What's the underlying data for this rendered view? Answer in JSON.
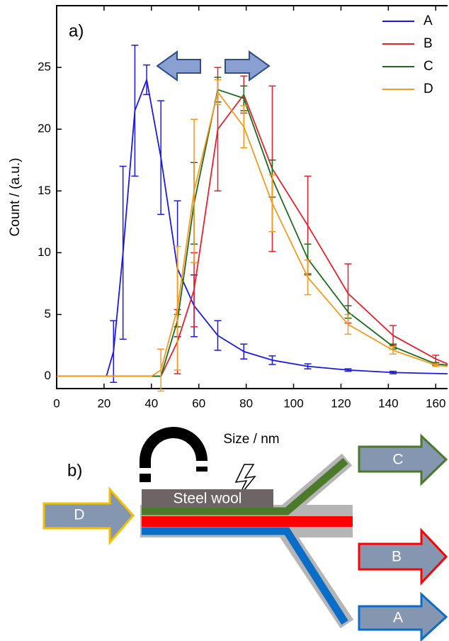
{
  "chart_data": {
    "type": "line",
    "panel_label": "a)",
    "x_label": "Size / nm",
    "y_label": "Count / (a.u.)",
    "xlim": [
      0,
      165
    ],
    "ylim": [
      -1,
      30
    ],
    "xticks": [
      0,
      20,
      40,
      60,
      80,
      100,
      120,
      140,
      160
    ],
    "yticks": [
      0,
      5,
      10,
      15,
      20,
      25
    ],
    "grid": false,
    "legend": "upper right",
    "series": [
      {
        "name": "A",
        "color": "#1a1ae0",
        "x": [
          0,
          21,
          24,
          28,
          33,
          38,
          44,
          51,
          58,
          68,
          79,
          91,
          106,
          123,
          142,
          165
        ],
        "values": [
          0,
          0,
          2,
          10,
          21.5,
          24,
          17.7,
          8.7,
          5.7,
          3.3,
          2,
          1.3,
          0.8,
          0.5,
          0.3,
          0.2
        ],
        "errors": [
          null,
          null,
          2.5,
          7,
          5.3,
          1.2,
          4.6,
          5.5,
          2.5,
          1.2,
          0.6,
          0.35,
          0.2,
          0.1,
          0.1,
          null
        ]
      },
      {
        "name": "B",
        "color": "#e8202a",
        "x": [
          0,
          44,
          51,
          58,
          68,
          79,
          91,
          106,
          123,
          142,
          160,
          165
        ],
        "values": [
          0,
          0,
          2.8,
          7,
          20,
          22.8,
          16.8,
          12.2,
          6.7,
          3.3,
          1.4,
          1
        ],
        "errors": [
          null,
          null,
          2.6,
          3,
          5,
          1.5,
          6.7,
          4,
          2.4,
          0.8,
          0.3,
          null
        ]
      },
      {
        "name": "C",
        "color": "#1e6b1e",
        "x": [
          0,
          44,
          51,
          58,
          68,
          79,
          91,
          106,
          123,
          142,
          160,
          165
        ],
        "values": [
          0,
          0,
          4.5,
          14,
          23.2,
          22.5,
          16,
          9.5,
          5.2,
          2.4,
          1,
          0.9
        ],
        "errors": [
          null,
          null,
          0.5,
          3.3,
          1,
          1,
          1.5,
          1.2,
          0.5,
          0.2,
          0.1,
          null
        ]
      },
      {
        "name": "D",
        "color": "#f59a1e",
        "x": [
          0,
          40,
          44,
          51,
          58,
          68,
          79,
          91,
          106,
          123,
          142,
          160,
          165
        ],
        "values": [
          0,
          0,
          0.5,
          5.5,
          15,
          23,
          20.2,
          14,
          8,
          4.2,
          2.1,
          0.9,
          0.8
        ],
        "errors": [
          null,
          null,
          1.7,
          5,
          5.8,
          1,
          1.7,
          2.3,
          1.4,
          0.8,
          0.3,
          0.1,
          null
        ]
      }
    ]
  },
  "diagram": {
    "panel_label": "b)",
    "steel_wool": "Steel wool",
    "inlet": "D",
    "outlets": [
      "C",
      "B",
      "A"
    ]
  }
}
